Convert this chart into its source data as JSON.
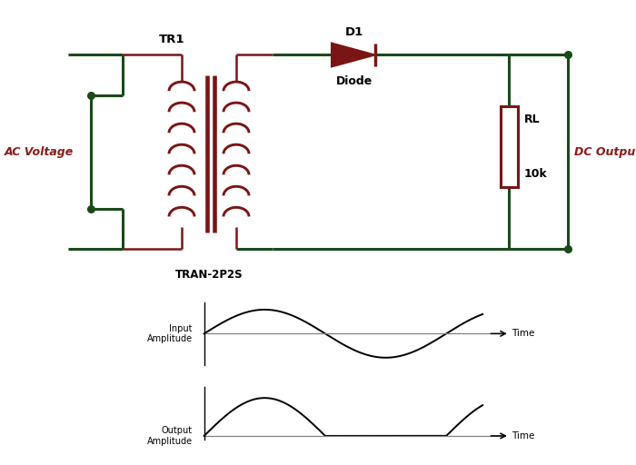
{
  "bg_color": "#ffffff",
  "circuit_color": "#1a4a1a",
  "component_color": "#7a1515",
  "label_color": "#8b1a1a",
  "text_color": "#000000",
  "wire_lw": 2.2,
  "component_lw": 1.8,
  "ac_label": "AC Voltage",
  "dc_label": "DC Output",
  "tr1_label": "TR1",
  "tran_label": "TRAN-2P2S",
  "d1_label": "D1",
  "diode_label": "Diode",
  "rl_label": "RL",
  "rl_val": "10k",
  "input_amp_label": "Input\nAmplitude",
  "output_amp_label": "Output\nAmplitude",
  "time_label": "Time"
}
